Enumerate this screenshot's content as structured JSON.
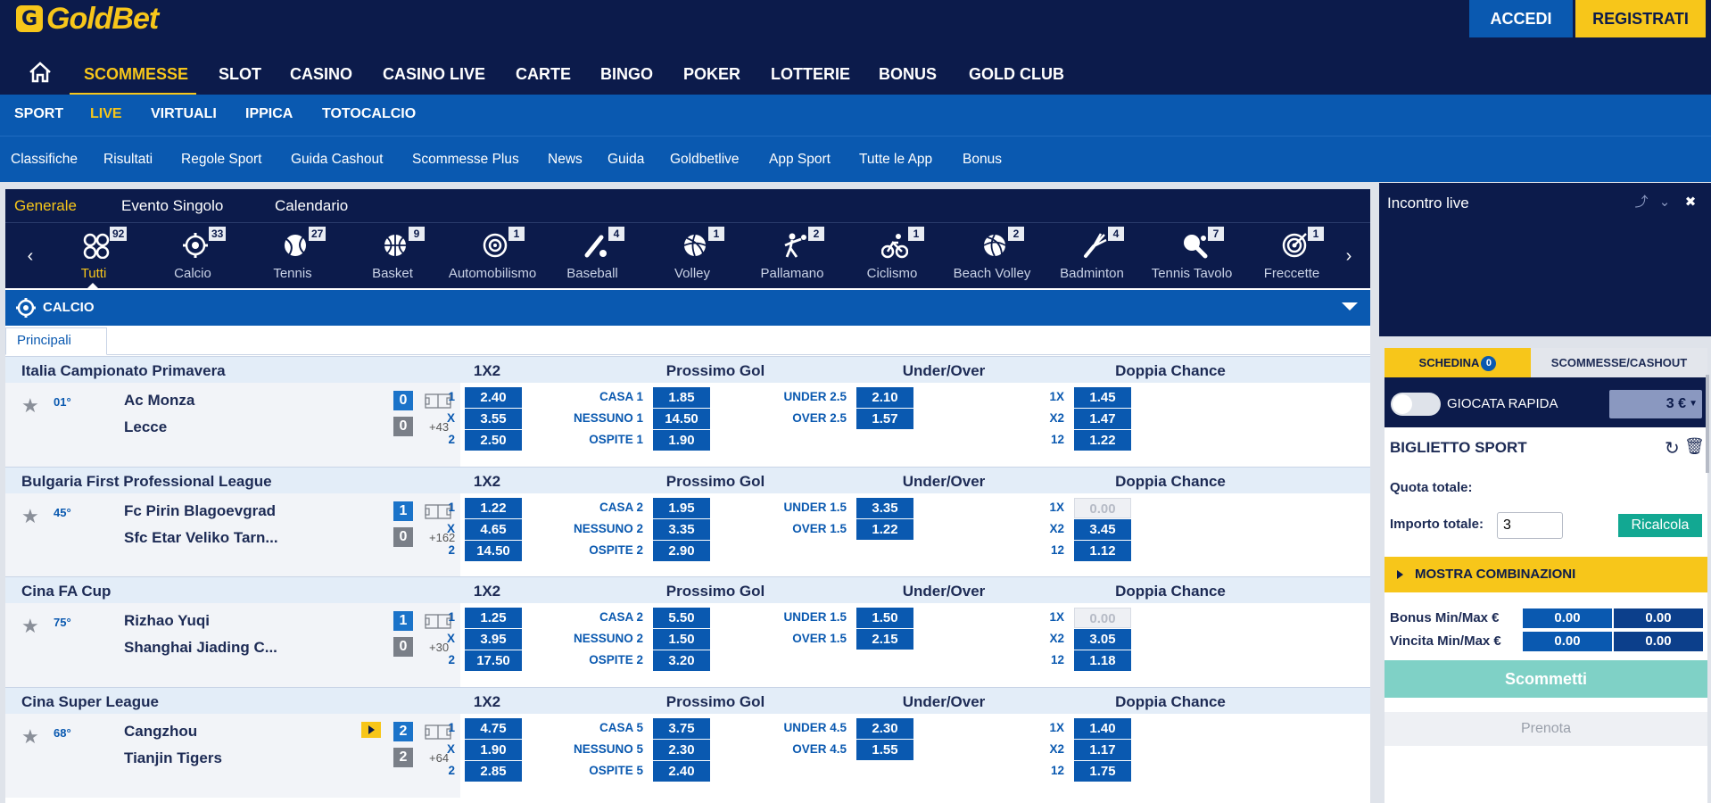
{
  "header": {
    "logo_text": "GoldBet",
    "logo_mark": "G",
    "login_label": "ACCEDI",
    "register_label": "REGISTRATI"
  },
  "main_nav": [
    "SCOMMESSE",
    "SLOT",
    "CASINO",
    "CASINO LIVE",
    "CARTE",
    "BINGO",
    "POKER",
    "LOTTERIE",
    "BONUS",
    "GOLD CLUB"
  ],
  "sub_nav": [
    "SPORT",
    "LIVE",
    "VIRTUALI",
    "IPPICA",
    "TOTOCALCIO"
  ],
  "links": [
    "Classifiche",
    "Risultati",
    "Regole Sport",
    "Guida Cashout",
    "Scommesse Plus",
    "News",
    "Guida",
    "Goldbetlive",
    "App Sport",
    "Tutte le App",
    "Bonus"
  ],
  "view_tabs": [
    "Generale",
    "Evento Singolo",
    "Calendario"
  ],
  "sports": [
    {
      "name": "Tutti",
      "count": "92",
      "icon": "all-sports-icon"
    },
    {
      "name": "Calcio",
      "count": "33",
      "icon": "soccer-icon"
    },
    {
      "name": "Tennis",
      "count": "27",
      "icon": "tennis-icon"
    },
    {
      "name": "Basket",
      "count": "9",
      "icon": "basketball-icon"
    },
    {
      "name": "Automobilismo",
      "count": "1",
      "icon": "racing-icon"
    },
    {
      "name": "Baseball",
      "count": "4",
      "icon": "baseball-icon"
    },
    {
      "name": "Volley",
      "count": "1",
      "icon": "volleyball-icon"
    },
    {
      "name": "Pallamano",
      "count": "2",
      "icon": "handball-icon"
    },
    {
      "name": "Ciclismo",
      "count": "1",
      "icon": "cycling-icon"
    },
    {
      "name": "Beach Volley",
      "count": "2",
      "icon": "beach-volley-icon"
    },
    {
      "name": "Badminton",
      "count": "4",
      "icon": "badminton-icon"
    },
    {
      "name": "Tennis Tavolo",
      "count": "7",
      "icon": "table-tennis-icon"
    },
    {
      "name": "Freccette",
      "count": "1",
      "icon": "darts-icon"
    }
  ],
  "section": {
    "title": "CALCIO",
    "subtab": "Principali"
  },
  "market_headers": [
    "1X2",
    "Prossimo Gol",
    "Under/Over",
    "Doppia Chance"
  ],
  "leagues": [
    {
      "name": "Italia Campionato Primavera",
      "minute": "01°",
      "home": "Ac Monza",
      "away": "Lecce",
      "home_score": "0",
      "away_score": "0",
      "extra": "+43",
      "live_video": false,
      "x12": [
        {
          "l": "1",
          "v": "2.40"
        },
        {
          "l": "X",
          "v": "3.55"
        },
        {
          "l": "2",
          "v": "2.50"
        }
      ],
      "next_goal": [
        {
          "l": "CASA 1",
          "v": "1.85"
        },
        {
          "l": "NESSUNO 1",
          "v": "14.50"
        },
        {
          "l": "OSPITE 1",
          "v": "1.90"
        }
      ],
      "under_over": [
        {
          "l": "UNDER 2.5",
          "v": "2.10"
        },
        {
          "l": "OVER 2.5",
          "v": "1.57"
        }
      ],
      "double": [
        {
          "l": "1X",
          "v": "1.45",
          "off": false
        },
        {
          "l": "X2",
          "v": "1.47",
          "off": false
        },
        {
          "l": "12",
          "v": "1.22",
          "off": false
        }
      ]
    },
    {
      "name": "Bulgaria First Professional League",
      "minute": "45°",
      "home": "Fc Pirin Blagoevgrad",
      "away": "Sfc Etar Veliko Tarn...",
      "home_score": "1",
      "away_score": "0",
      "extra": "+162",
      "live_video": false,
      "x12": [
        {
          "l": "1",
          "v": "1.22"
        },
        {
          "l": "X",
          "v": "4.65"
        },
        {
          "l": "2",
          "v": "14.50"
        }
      ],
      "next_goal": [
        {
          "l": "CASA 2",
          "v": "1.95"
        },
        {
          "l": "NESSUNO 2",
          "v": "3.35"
        },
        {
          "l": "OSPITE 2",
          "v": "2.90"
        }
      ],
      "under_over": [
        {
          "l": "UNDER 1.5",
          "v": "3.35"
        },
        {
          "l": "OVER 1.5",
          "v": "1.22"
        }
      ],
      "double": [
        {
          "l": "1X",
          "v": "0.00",
          "off": true
        },
        {
          "l": "X2",
          "v": "3.45",
          "off": false
        },
        {
          "l": "12",
          "v": "1.12",
          "off": false
        }
      ]
    },
    {
      "name": "Cina FA Cup",
      "minute": "75°",
      "home": "Rizhao Yuqi",
      "away": "Shanghai Jiading C...",
      "home_score": "1",
      "away_score": "0",
      "extra": "+30",
      "live_video": false,
      "x12": [
        {
          "l": "1",
          "v": "1.25"
        },
        {
          "l": "X",
          "v": "3.95"
        },
        {
          "l": "2",
          "v": "17.50"
        }
      ],
      "next_goal": [
        {
          "l": "CASA 2",
          "v": "5.50"
        },
        {
          "l": "NESSUNO 2",
          "v": "1.50"
        },
        {
          "l": "OSPITE 2",
          "v": "3.20"
        }
      ],
      "under_over": [
        {
          "l": "UNDER 1.5",
          "v": "1.50"
        },
        {
          "l": "OVER 1.5",
          "v": "2.15"
        }
      ],
      "double": [
        {
          "l": "1X",
          "v": "0.00",
          "off": true
        },
        {
          "l": "X2",
          "v": "3.05",
          "off": false
        },
        {
          "l": "12",
          "v": "1.18",
          "off": false
        }
      ]
    },
    {
      "name": "Cina Super League",
      "minute": "68°",
      "home": "Cangzhou",
      "away": "Tianjin Tigers",
      "home_score": "2",
      "away_score": "2",
      "extra": "+64",
      "live_video": true,
      "x12": [
        {
          "l": "1",
          "v": "4.75"
        },
        {
          "l": "X",
          "v": "1.90"
        },
        {
          "l": "2",
          "v": "2.85"
        }
      ],
      "next_goal": [
        {
          "l": "CASA 5",
          "v": "3.75"
        },
        {
          "l": "NESSUNO 5",
          "v": "2.30"
        },
        {
          "l": "OSPITE 5",
          "v": "2.40"
        }
      ],
      "under_over": [
        {
          "l": "UNDER 4.5",
          "v": "2.30"
        },
        {
          "l": "OVER 4.5",
          "v": "1.55"
        }
      ],
      "double": [
        {
          "l": "1X",
          "v": "1.40",
          "off": false
        },
        {
          "l": "X2",
          "v": "1.17",
          "off": false
        },
        {
          "l": "12",
          "v": "1.75",
          "off": false
        }
      ]
    }
  ],
  "live_panel": {
    "title": "Incontro live"
  },
  "betslip": {
    "tab_schedina": "SCHEDINA",
    "schedina_count": "0",
    "tab_cashout": "SCOMMESSE/CASHOUT",
    "quick_label": "GIOCATA RAPIDA",
    "quick_stake": "3 €",
    "ticket_title": "BIGLIETTO SPORT",
    "quota_label": "Quota totale:",
    "importo_label": "Importo totale:",
    "importo_value": "3",
    "ricalcola": "Ricalcola",
    "combinazioni": "MOSTRA COMBINAZIONI",
    "bonus_label": "Bonus Min/Max €",
    "bonus_min": "0.00",
    "bonus_max": "0.00",
    "vincita_label": "Vincita Min/Max €",
    "vincita_min": "0.00",
    "vincita_max": "0.00",
    "scommetti": "Scommetti",
    "prenota": "Prenota"
  }
}
